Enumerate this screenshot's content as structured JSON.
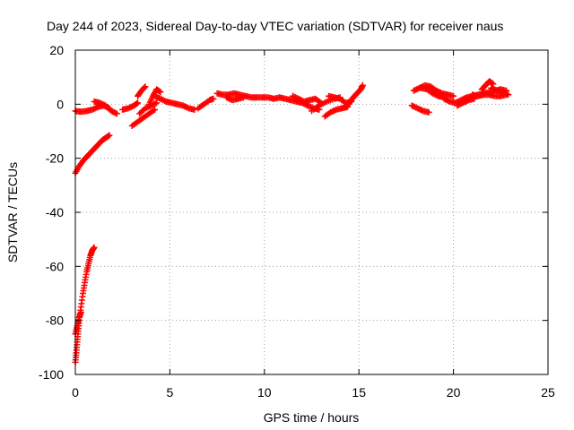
{
  "chart_data": {
    "type": "scatter",
    "title": "Day 244 of 2023, Sidereal Day-to-day VTEC variation (SDTVAR) for receiver naus",
    "xlabel": "GPS time / hours",
    "ylabel": "SDTVAR / TECUs",
    "xlim": [
      0,
      25
    ],
    "ylim": [
      -100,
      20
    ],
    "xticks": [
      0,
      5,
      10,
      15,
      20,
      25
    ],
    "yticks": [
      -100,
      -80,
      -60,
      -40,
      -20,
      0,
      20
    ],
    "xtick_labels": [
      "0",
      "5",
      "10",
      "15",
      "20",
      "25"
    ],
    "ytick_labels": [
      "-100",
      "-80",
      "-60",
      "-40",
      "-20",
      "0",
      "20"
    ],
    "grid": true,
    "marker": "+",
    "series": [
      {
        "name": "SDTVAR",
        "color": "#ff0000",
        "segments": [
          [
            [
              0.0,
              -95.5
            ],
            [
              0.05,
              -92
            ],
            [
              0.1,
              -88
            ],
            [
              0.15,
              -84
            ],
            [
              0.2,
              -80
            ],
            [
              0.3,
              -75
            ],
            [
              0.4,
              -70
            ],
            [
              0.5,
              -66
            ],
            [
              0.6,
              -62
            ],
            [
              0.7,
              -59
            ],
            [
              0.8,
              -56
            ],
            [
              0.9,
              -54
            ],
            [
              1.0,
              -53
            ]
          ],
          [
            [
              0.0,
              -85
            ],
            [
              0.1,
              -82
            ],
            [
              0.2,
              -79
            ],
            [
              0.3,
              -77
            ]
          ],
          [
            [
              0.0,
              -25.5
            ],
            [
              0.2,
              -23
            ],
            [
              0.4,
              -21
            ],
            [
              0.6,
              -19.5
            ],
            [
              0.8,
              -18
            ],
            [
              1.0,
              -16.5
            ],
            [
              1.2,
              -15
            ],
            [
              1.4,
              -13.5
            ],
            [
              1.6,
              -12.5
            ],
            [
              1.8,
              -11.5
            ]
          ],
          [
            [
              0.0,
              -2.5
            ],
            [
              0.3,
              -2.8
            ],
            [
              0.6,
              -2.5
            ],
            [
              0.9,
              -2.0
            ],
            [
              1.2,
              -1.0
            ],
            [
              1.5,
              -0.5
            ],
            [
              1.8,
              -1.5
            ]
          ],
          [
            [
              1.0,
              1
            ],
            [
              1.3,
              0.5
            ],
            [
              1.6,
              -0.5
            ],
            [
              1.9,
              -2.5
            ],
            [
              2.2,
              -3.5
            ]
          ],
          [
            [
              2.5,
              -2
            ],
            [
              2.8,
              -1.5
            ],
            [
              3.1,
              -0.5
            ],
            [
              3.3,
              0.5
            ]
          ],
          [
            [
              3.0,
              -8
            ],
            [
              3.3,
              -6.5
            ],
            [
              3.6,
              -5
            ],
            [
              3.9,
              -3.5
            ],
            [
              4.2,
              -2
            ]
          ],
          [
            [
              3.4,
              -3.5
            ],
            [
              3.7,
              -1.5
            ],
            [
              4.0,
              -0.5
            ],
            [
              4.3,
              0.5
            ]
          ],
          [
            [
              3.3,
              3
            ],
            [
              3.5,
              5
            ],
            [
              3.7,
              6.5
            ]
          ],
          [
            [
              3.9,
              0
            ],
            [
              4.1,
              3
            ],
            [
              4.3,
              5.5
            ],
            [
              4.5,
              4.5
            ]
          ],
          [
            [
              4.2,
              3
            ],
            [
              4.5,
              2
            ],
            [
              4.8,
              1
            ],
            [
              5.1,
              0.5
            ],
            [
              5.4,
              0
            ],
            [
              5.7,
              -0.5
            ],
            [
              6.0,
              -1.5
            ],
            [
              6.3,
              -2
            ]
          ],
          [
            [
              6.5,
              -1.5
            ],
            [
              6.8,
              0
            ],
            [
              7.1,
              1.5
            ],
            [
              7.3,
              2
            ]
          ],
          [
            [
              7.5,
              4
            ],
            [
              7.8,
              3.5
            ],
            [
              8.1,
              3.5
            ],
            [
              8.4,
              4
            ],
            [
              8.7,
              3.5
            ],
            [
              9.0,
              3
            ],
            [
              9.3,
              2.5
            ],
            [
              9.6,
              2.5
            ],
            [
              9.9,
              2.5
            ],
            [
              10.2,
              2.5
            ],
            [
              10.5,
              2
            ],
            [
              10.8,
              2.5
            ],
            [
              11.1,
              2
            ],
            [
              11.4,
              1.5
            ],
            [
              11.7,
              1
            ],
            [
              12.0,
              0.5
            ],
            [
              12.3,
              -0.5
            ],
            [
              12.6,
              -1.5
            ],
            [
              12.9,
              -2
            ]
          ],
          [
            [
              8.0,
              2.5
            ],
            [
              8.3,
              1.5
            ],
            [
              8.6,
              2
            ],
            [
              8.9,
              2.5
            ]
          ],
          [
            [
              11.5,
              3
            ],
            [
              11.8,
              2
            ],
            [
              12.1,
              1
            ],
            [
              12.4,
              1.5
            ],
            [
              12.7,
              2
            ],
            [
              13.0,
              0.5
            ]
          ],
          [
            [
              12.5,
              -2.5
            ],
            [
              12.9,
              -0.5
            ],
            [
              13.3,
              1
            ],
            [
              13.7,
              2
            ],
            [
              14.0,
              2.5
            ]
          ],
          [
            [
              13.2,
              -4.5
            ],
            [
              13.5,
              -3
            ],
            [
              13.8,
              -2
            ],
            [
              14.1,
              -1.5
            ],
            [
              14.4,
              -1
            ]
          ],
          [
            [
              13.4,
              3
            ],
            [
              13.7,
              2.5
            ],
            [
              14.0,
              2
            ],
            [
              14.3,
              0.5
            ],
            [
              14.6,
              1
            ]
          ],
          [
            [
              14.3,
              -1
            ],
            [
              14.5,
              0.5
            ],
            [
              14.7,
              2.5
            ],
            [
              14.9,
              4
            ],
            [
              15.1,
              5.5
            ],
            [
              15.2,
              7
            ]
          ],
          [
            [
              17.8,
              -0.5
            ],
            [
              18.1,
              -1.5
            ],
            [
              18.4,
              -2.5
            ],
            [
              18.7,
              -3
            ]
          ],
          [
            [
              17.9,
              5
            ],
            [
              18.2,
              6
            ],
            [
              18.5,
              7
            ],
            [
              18.8,
              6.5
            ],
            [
              19.1,
              5
            ],
            [
              19.4,
              4
            ],
            [
              19.7,
              3.5
            ],
            [
              20.0,
              3
            ]
          ],
          [
            [
              18.3,
              6
            ],
            [
              18.6,
              5.5
            ],
            [
              18.9,
              4
            ],
            [
              19.2,
              3
            ],
            [
              19.5,
              2.5
            ]
          ],
          [
            [
              19.5,
              2
            ],
            [
              19.8,
              1
            ],
            [
              20.1,
              0.5
            ],
            [
              20.4,
              1.5
            ],
            [
              20.7,
              2.5
            ],
            [
              21.0,
              3
            ],
            [
              21.3,
              3.5
            ],
            [
              21.6,
              4
            ],
            [
              21.9,
              4.5
            ],
            [
              22.2,
              5
            ],
            [
              22.5,
              5.5
            ],
            [
              22.8,
              5
            ]
          ],
          [
            [
              20.2,
              -0.5
            ],
            [
              20.5,
              0.5
            ],
            [
              20.8,
              1.5
            ],
            [
              21.1,
              2
            ]
          ],
          [
            [
              21.0,
              3.5
            ],
            [
              21.3,
              3
            ],
            [
              21.6,
              3.5
            ],
            [
              21.9,
              3.5
            ],
            [
              22.2,
              3
            ],
            [
              22.5,
              3
            ],
            [
              22.8,
              3.5
            ]
          ],
          [
            [
              21.5,
              5.5
            ],
            [
              21.7,
              7
            ],
            [
              21.9,
              8.5
            ],
            [
              22.1,
              7.5
            ]
          ],
          [
            [
              22.0,
              6
            ],
            [
              22.3,
              5
            ],
            [
              22.6,
              4.5
            ],
            [
              22.9,
              3.5
            ]
          ]
        ]
      }
    ]
  }
}
